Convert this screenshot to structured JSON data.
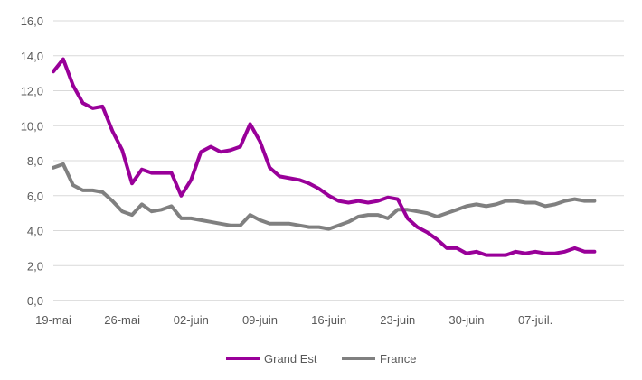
{
  "chart_data": {
    "type": "line",
    "title": "",
    "xlabel": "",
    "ylabel": "",
    "ylim": [
      0,
      16
    ],
    "yticks": [
      "0,0",
      "2,0",
      "4,0",
      "6,0",
      "8,0",
      "10,0",
      "12,0",
      "14,0",
      "16,0"
    ],
    "xticks": [
      {
        "label": "19-mai",
        "index": 0
      },
      {
        "label": "26-mai",
        "index": 7
      },
      {
        "label": "02-juin",
        "index": 14
      },
      {
        "label": "09-juin",
        "index": 21
      },
      {
        "label": "16-juin",
        "index": 28
      },
      {
        "label": "23-juin",
        "index": 35
      },
      {
        "label": "30-juin",
        "index": 42
      },
      {
        "label": "07-juil.",
        "index": 49
      }
    ],
    "grid": true,
    "legend_position": "bottom",
    "series": [
      {
        "name": "Grand Est",
        "color": "#990099",
        "values": [
          13.1,
          13.8,
          12.3,
          11.3,
          11.0,
          11.1,
          9.7,
          8.6,
          6.7,
          7.5,
          7.3,
          7.3,
          7.3,
          6.0,
          6.9,
          8.5,
          8.8,
          8.5,
          8.6,
          8.8,
          10.1,
          9.1,
          7.6,
          7.1,
          7.0,
          6.9,
          6.7,
          6.4,
          6.0,
          5.7,
          5.6,
          5.7,
          5.6,
          5.7,
          5.9,
          5.8,
          4.7,
          4.2,
          3.9,
          3.5,
          3.0,
          3.0,
          2.7,
          2.8,
          2.6,
          2.6,
          2.6,
          2.8,
          2.7,
          2.8,
          2.7,
          2.7,
          2.8,
          3.0,
          2.8,
          2.8
        ]
      },
      {
        "name": "France",
        "color": "#808080",
        "values": [
          7.6,
          7.8,
          6.6,
          6.3,
          6.3,
          6.2,
          5.7,
          5.1,
          4.9,
          5.5,
          5.1,
          5.2,
          5.4,
          4.7,
          4.7,
          4.6,
          4.5,
          4.4,
          4.3,
          4.3,
          4.9,
          4.6,
          4.4,
          4.4,
          4.4,
          4.3,
          4.2,
          4.2,
          4.1,
          4.3,
          4.5,
          4.8,
          4.9,
          4.9,
          4.7,
          5.2,
          5.2,
          5.1,
          5.0,
          4.8,
          5.0,
          5.2,
          5.4,
          5.5,
          5.4,
          5.5,
          5.7,
          5.7,
          5.6,
          5.6,
          5.4,
          5.5,
          5.7,
          5.8,
          5.7,
          5.7
        ]
      }
    ]
  }
}
